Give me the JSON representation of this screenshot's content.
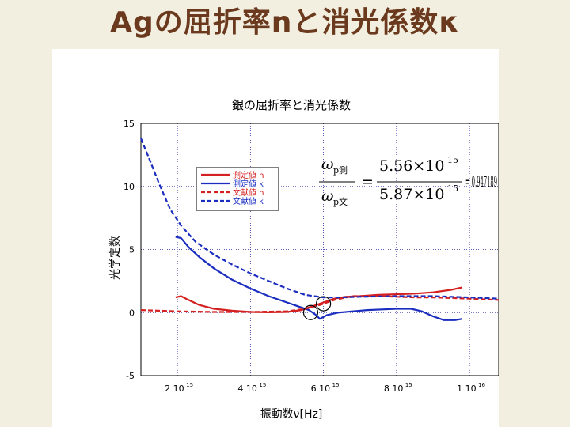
{
  "slide": {
    "title": "Agの屈折率nと消光係数κ"
  },
  "formula": {
    "numerator_symbol": "ω",
    "numerator_sub": "p測",
    "denominator_symbol": "ω",
    "denominator_sub": "p文",
    "numerator_mantissa": "5.56×10",
    "numerator_exp": "15",
    "denominator_mantissa": "5.87×10",
    "denominator_exp": "15",
    "equals": "=",
    "result": "= 0.947189"
  },
  "chart_data": {
    "type": "line",
    "title": "銀の屈折率と消光係数",
    "xlabel": "振動数ν[Hz]",
    "ylabel": "光学定数",
    "xlim": [
      1000000000000000.0,
      1.08e+16
    ],
    "ylim": [
      -5,
      15
    ],
    "grid": true,
    "x_ticks": [
      {
        "value": 2000000000000000.0,
        "label": "2",
        "exp": "15"
      },
      {
        "value": 4000000000000000.0,
        "label": "4",
        "exp": "15"
      },
      {
        "value": 6000000000000000.0,
        "label": "6",
        "exp": "15"
      },
      {
        "value": 8000000000000000.0,
        "label": "8",
        "exp": "15"
      },
      {
        "value": 1e+16,
        "label": "1",
        "exp": "16"
      }
    ],
    "x_tick_base": "10",
    "y_ticks": [
      15,
      10,
      5,
      0,
      -5
    ],
    "legend_position": "top-left",
    "colors": {
      "red": "#d42020",
      "blue": "#1a2dbf"
    },
    "series": [
      {
        "name": "測定値 n",
        "color": "#d42020",
        "dash": false,
        "points": [
          [
            1950000000000000.0,
            1.2
          ],
          [
            2100000000000000.0,
            1.3
          ],
          [
            2300000000000000.0,
            1.0
          ],
          [
            2600000000000000.0,
            0.6
          ],
          [
            3000000000000000.0,
            0.3
          ],
          [
            3500000000000000.0,
            0.15
          ],
          [
            4000000000000000.0,
            0.05
          ],
          [
            4500000000000000.0,
            0.02
          ],
          [
            5000000000000000.0,
            0.05
          ],
          [
            5400000000000000.0,
            0.2
          ],
          [
            5700000000000000.0,
            0.5
          ],
          [
            6000000000000000.0,
            0.8
          ],
          [
            6300000000000000.0,
            1.1
          ],
          [
            6600000000000000.0,
            1.25
          ],
          [
            7000000000000000.0,
            1.3
          ],
          [
            7500000000000000.0,
            1.4
          ],
          [
            8000000000000000.0,
            1.45
          ],
          [
            8500000000000000.0,
            1.5
          ],
          [
            9000000000000000.0,
            1.6
          ],
          [
            9500000000000000.0,
            1.8
          ],
          [
            9800000000000000.0,
            2.0
          ]
        ]
      },
      {
        "name": "測定値 κ",
        "color": "#1a2dbf",
        "dash": false,
        "points": [
          [
            1950000000000000.0,
            6.0
          ],
          [
            2100000000000000.0,
            5.9
          ],
          [
            2300000000000000.0,
            5.2
          ],
          [
            2600000000000000.0,
            4.4
          ],
          [
            3000000000000000.0,
            3.5
          ],
          [
            3500000000000000.0,
            2.6
          ],
          [
            4000000000000000.0,
            1.9
          ],
          [
            4500000000000000.0,
            1.3
          ],
          [
            5000000000000000.0,
            0.8
          ],
          [
            5300000000000000.0,
            0.5
          ],
          [
            5600000000000000.0,
            0.2
          ],
          [
            5800000000000000.0,
            -0.2
          ],
          [
            5900000000000000.0,
            -0.5
          ],
          [
            6100000000000000.0,
            -0.2
          ],
          [
            6400000000000000.0,
            0.0
          ],
          [
            6800000000000000.0,
            0.1
          ],
          [
            7200000000000000.0,
            0.2
          ],
          [
            7600000000000000.0,
            0.25
          ],
          [
            8000000000000000.0,
            0.3
          ],
          [
            8400000000000000.0,
            0.3
          ],
          [
            8700000000000000.0,
            0.1
          ],
          [
            9000000000000000.0,
            -0.3
          ],
          [
            9300000000000000.0,
            -0.6
          ],
          [
            9600000000000000.0,
            -0.6
          ],
          [
            9800000000000000.0,
            -0.5
          ]
        ]
      },
      {
        "name": "文献値 n",
        "color": "#d42020",
        "dash": true,
        "points": [
          [
            1000000000000000.0,
            0.2
          ],
          [
            2000000000000000.0,
            0.1
          ],
          [
            3000000000000000.0,
            0.05
          ],
          [
            4000000000000000.0,
            0.05
          ],
          [
            5000000000000000.0,
            0.1
          ],
          [
            5500000000000000.0,
            0.3
          ],
          [
            5900000000000000.0,
            0.6
          ],
          [
            6300000000000000.0,
            1.0
          ],
          [
            6800000000000000.0,
            1.3
          ],
          [
            7500000000000000.0,
            1.3
          ],
          [
            8000000000000000.0,
            1.25
          ],
          [
            8500000000000000.0,
            1.2
          ],
          [
            9000000000000000.0,
            1.2
          ],
          [
            9500000000000000.0,
            1.15
          ],
          [
            1e+16,
            1.1
          ],
          [
            1.08e+16,
            1.0
          ]
        ]
      },
      {
        "name": "文献値 κ",
        "color": "#1a2dbf",
        "dash": true,
        "points": [
          [
            1000000000000000.0,
            13.8
          ],
          [
            1200000000000000.0,
            12.4
          ],
          [
            1500000000000000.0,
            10.2
          ],
          [
            1800000000000000.0,
            8.2
          ],
          [
            2100000000000000.0,
            6.9
          ],
          [
            2500000000000000.0,
            5.6
          ],
          [
            3000000000000000.0,
            4.6
          ],
          [
            3500000000000000.0,
            3.8
          ],
          [
            4000000000000000.0,
            3.1
          ],
          [
            4500000000000000.0,
            2.5
          ],
          [
            5000000000000000.0,
            1.9
          ],
          [
            5500000000000000.0,
            1.4
          ],
          [
            6000000000000000.0,
            1.2
          ],
          [
            6500000000000000.0,
            1.2
          ],
          [
            7000000000000000.0,
            1.25
          ],
          [
            8000000000000000.0,
            1.3
          ],
          [
            9000000000000000.0,
            1.3
          ],
          [
            1e+16,
            1.2
          ],
          [
            1.08e+16,
            1.1
          ]
        ]
      }
    ],
    "annotations": [
      {
        "type": "circle",
        "x": 5650000000000000.0,
        "y": 0.0
      },
      {
        "type": "circle",
        "x": 6000000000000000.0,
        "y": 0.7
      }
    ]
  }
}
